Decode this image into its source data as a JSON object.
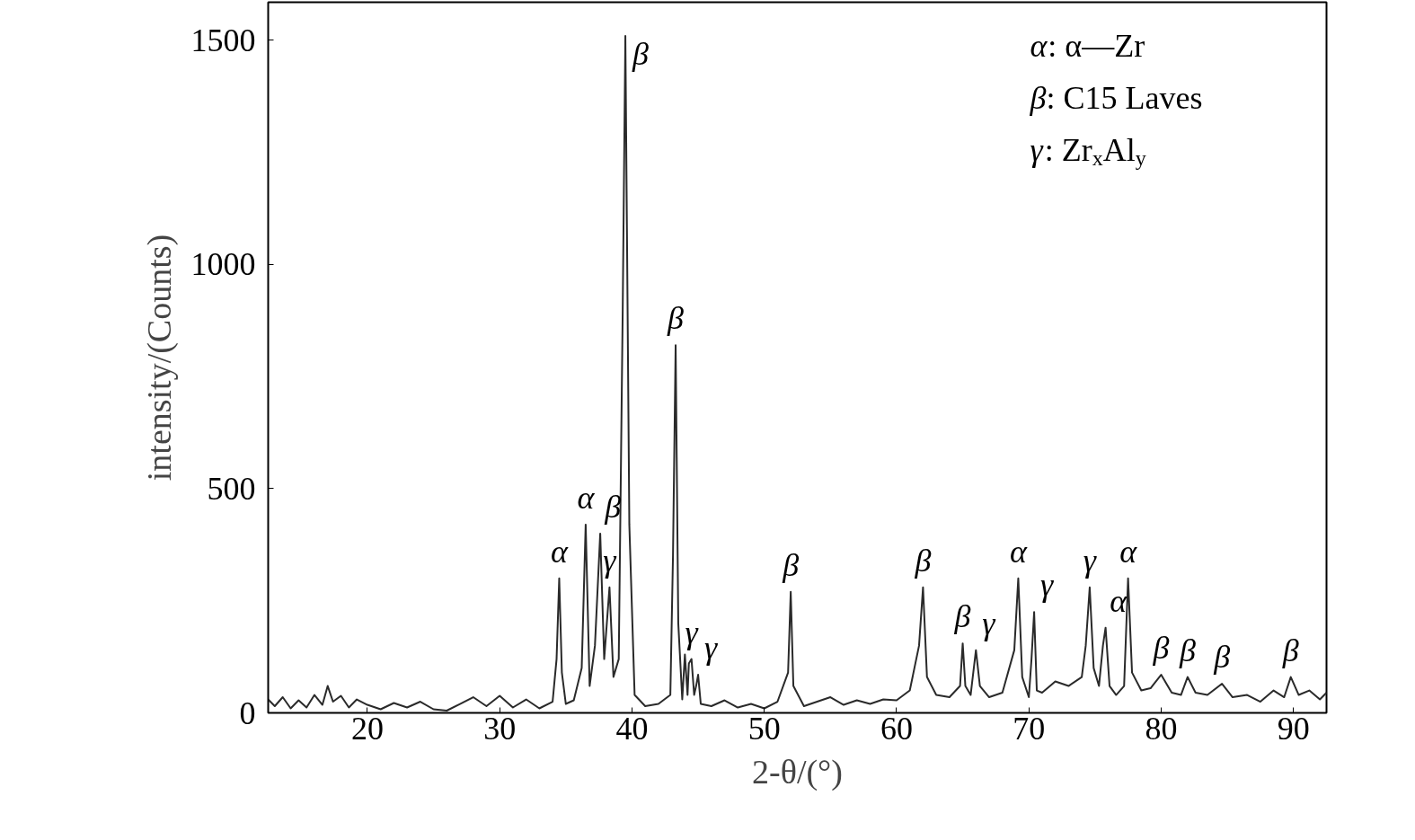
{
  "chart_data": {
    "type": "line",
    "xlabel": "2-θ/(°)",
    "ylabel": "intensity/(Counts)",
    "xlim": [
      12.5,
      92.5
    ],
    "ylim": [
      0,
      1585
    ],
    "xticks": [
      20,
      30,
      40,
      50,
      60,
      70,
      80,
      90
    ],
    "yticks": [
      0,
      500,
      1000,
      1500
    ],
    "grid": false,
    "marker": "none",
    "line_style": "solid",
    "series": [
      {
        "color": "#2a2a2a",
        "x": [
          12.5,
          13.0,
          13.6,
          14.2,
          14.8,
          15.4,
          16.0,
          16.6,
          17.0,
          17.4,
          18.0,
          18.6,
          19.2,
          20.0,
          21.0,
          22.0,
          23.0,
          24.0,
          25.0,
          26.0,
          27.0,
          28.0,
          29.0,
          30.0,
          31.0,
          32.0,
          33.0,
          34.0,
          34.3,
          34.5,
          34.7,
          35.0,
          35.6,
          36.2,
          36.5,
          36.8,
          37.2,
          37.6,
          37.9,
          38.1,
          38.3,
          38.6,
          39.0,
          39.3,
          39.5,
          39.8,
          40.2,
          41.0,
          42.0,
          42.9,
          43.1,
          43.3,
          43.5,
          43.8,
          44.0,
          44.2,
          44.3,
          44.5,
          44.7,
          44.85,
          45.0,
          45.2,
          46.0,
          47.0,
          48.0,
          49.0,
          50.0,
          51.0,
          51.8,
          52.0,
          52.2,
          53.0,
          54.0,
          55.0,
          56.0,
          57.0,
          58.0,
          59.0,
          60.0,
          61.0,
          61.7,
          62.0,
          62.3,
          63.0,
          64.0,
          64.8,
          65.0,
          65.2,
          65.6,
          66.0,
          66.3,
          67.0,
          68.0,
          68.9,
          69.2,
          69.5,
          70.0,
          70.2,
          70.4,
          70.6,
          71.0,
          72.0,
          73.0,
          74.0,
          74.3,
          74.6,
          74.9,
          75.3,
          75.6,
          75.8,
          76.1,
          76.6,
          77.2,
          77.5,
          77.8,
          78.5,
          79.2,
          80.0,
          80.8,
          81.5,
          82.0,
          82.6,
          83.5,
          84.6,
          85.4,
          86.5,
          87.5,
          88.5,
          89.3,
          89.8,
          90.4,
          91.2,
          92.0,
          92.5
        ],
        "values": [
          30,
          15,
          35,
          10,
          28,
          12,
          40,
          18,
          60,
          25,
          38,
          12,
          30,
          18,
          8,
          22,
          12,
          25,
          8,
          5,
          20,
          35,
          15,
          38,
          12,
          30,
          10,
          25,
          120,
          300,
          90,
          20,
          28,
          100,
          420,
          60,
          150,
          400,
          120,
          200,
          280,
          80,
          120,
          900,
          1510,
          420,
          40,
          15,
          20,
          40,
          350,
          820,
          200,
          30,
          130,
          40,
          110,
          120,
          40,
          60,
          85,
          20,
          15,
          28,
          12,
          20,
          10,
          25,
          90,
          270,
          60,
          15,
          25,
          35,
          18,
          28,
          20,
          30,
          28,
          50,
          150,
          280,
          80,
          40,
          35,
          60,
          155,
          60,
          40,
          140,
          60,
          35,
          45,
          140,
          300,
          80,
          35,
          120,
          225,
          50,
          45,
          70,
          60,
          80,
          150,
          280,
          100,
          60,
          150,
          190,
          60,
          40,
          60,
          300,
          90,
          50,
          55,
          85,
          45,
          40,
          80,
          45,
          40,
          65,
          35,
          40,
          25,
          50,
          35,
          80,
          40,
          50,
          30,
          45
        ]
      }
    ],
    "annotations": [
      {
        "text": "α",
        "x": 34.5,
        "y": 300
      },
      {
        "text": "α",
        "x": 36.5,
        "y": 420
      },
      {
        "text": "β",
        "x": 37.6,
        "y": 400
      },
      {
        "text": "γ",
        "x": 38.3,
        "y": 280
      },
      {
        "text": "β",
        "x": 39.5,
        "y": 1510
      },
      {
        "text": "β",
        "x": 43.3,
        "y": 820
      },
      {
        "text": "γ",
        "x": 44.5,
        "y": 120
      },
      {
        "text": "γ",
        "x": 45.0,
        "y": 85
      },
      {
        "text": "β",
        "x": 52.0,
        "y": 270
      },
      {
        "text": "β",
        "x": 62.0,
        "y": 280
      },
      {
        "text": "β",
        "x": 65.0,
        "y": 155
      },
      {
        "text": "γ",
        "x": 66.0,
        "y": 140
      },
      {
        "text": "α",
        "x": 69.2,
        "y": 300
      },
      {
        "text": "γ",
        "x": 70.4,
        "y": 225
      },
      {
        "text": "γ",
        "x": 74.6,
        "y": 280
      },
      {
        "text": "α",
        "x": 75.8,
        "y": 190
      },
      {
        "text": "α",
        "x": 77.5,
        "y": 300
      },
      {
        "text": "β",
        "x": 80.0,
        "y": 85
      },
      {
        "text": "β",
        "x": 82.0,
        "y": 80
      },
      {
        "text": "β",
        "x": 84.6,
        "y": 65
      },
      {
        "text": "β",
        "x": 89.8,
        "y": 80
      },
      "α: α—Zr",
      "β: C15 Laves",
      "γ: Zr$_{x}$Al$_{y}$"
    ]
  }
}
